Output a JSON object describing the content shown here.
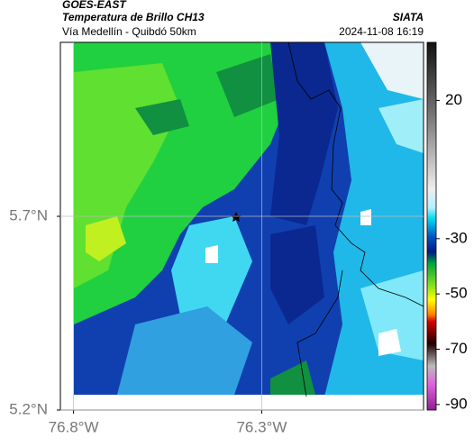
{
  "header": {
    "satellite": "GOES-EAST",
    "product": "Temperatura de Brillo CH13",
    "route": "Vía Medellín - Quibdó 50km",
    "source": "SIATA",
    "timestamp": "2024-11-08 16:19"
  },
  "map": {
    "xlim": [
      -76.835,
      -75.87
    ],
    "ylim": [
      5.2,
      6.149
    ],
    "xticks": [
      {
        "value": -76.8,
        "label": "76.8°W"
      },
      {
        "value": -76.3,
        "label": "76.3°W"
      }
    ],
    "yticks": [
      {
        "value": 5.2,
        "label": "5.2°N"
      },
      {
        "value": 5.7,
        "label": "5.7°N"
      }
    ]
  },
  "colorbar": {
    "range": [
      -92,
      41
    ],
    "ticks": [
      20,
      -30,
      -50,
      -70,
      -90
    ]
  }
}
